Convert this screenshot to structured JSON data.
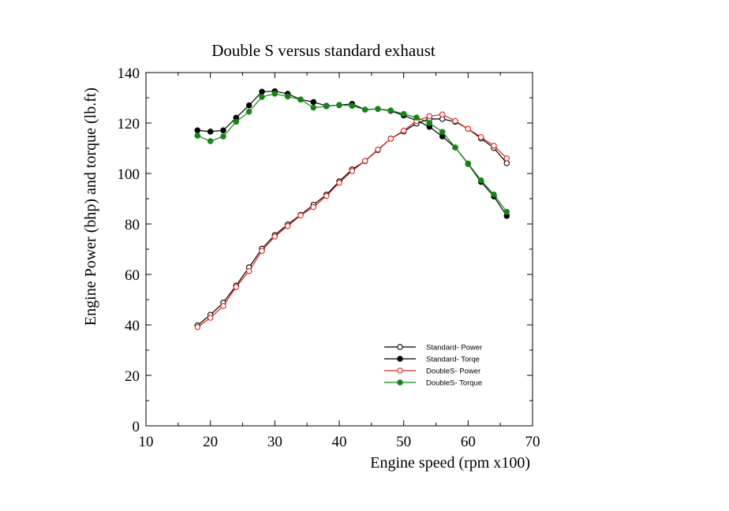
{
  "chart_data": {
    "type": "line",
    "title": "Double S versus standard exhaust",
    "xlabel": "Engine speed (rpm x100)",
    "ylabel": "Engine Power (bhp) and torque (lb.ft)",
    "xlim": [
      10,
      70
    ],
    "ylim": [
      0,
      140
    ],
    "xticks": [
      10,
      20,
      30,
      40,
      50,
      60,
      70
    ],
    "yticks": [
      0,
      20,
      40,
      60,
      80,
      100,
      120,
      140
    ],
    "grid": false,
    "legend_position": "lower-right",
    "series": [
      {
        "name": "Standard- Power",
        "color": "#000000",
        "marker": "open-circle",
        "x": [
          18,
          20,
          22,
          24,
          26,
          28,
          30,
          32,
          34,
          36,
          38,
          40,
          42,
          44,
          46,
          48,
          50,
          52,
          54,
          56,
          58,
          60,
          62,
          64,
          66
        ],
        "y": [
          39.8,
          44.0,
          48.8,
          55.6,
          62.8,
          70.2,
          75.6,
          79.8,
          83.6,
          87.6,
          91.6,
          96.9,
          101.6,
          104.9,
          109.3,
          113.8,
          116.7,
          119.8,
          121.6,
          121.6,
          120.5,
          117.7,
          113.9,
          110.1,
          104.1
        ]
      },
      {
        "name": "Standard- Torqe",
        "color": "#000000",
        "marker": "filled-circle",
        "x": [
          18,
          20,
          22,
          24,
          26,
          28,
          30,
          32,
          34,
          36,
          38,
          40,
          42,
          44,
          46,
          48,
          50,
          52,
          54,
          56,
          58,
          60,
          62,
          64,
          66
        ],
        "y": [
          117.1,
          116.6,
          117.1,
          122.1,
          127.0,
          132.4,
          132.6,
          131.6,
          129.3,
          128.3,
          126.8,
          127.1,
          127.6,
          125.3,
          125.6,
          124.8,
          123.0,
          121.0,
          118.5,
          114.7,
          110.3,
          103.8,
          96.7,
          90.9,
          83.2
        ]
      },
      {
        "name": "DoubleS- Power",
        "color": "#dd2222",
        "marker": "open-circle",
        "x": [
          18,
          20,
          22,
          24,
          26,
          28,
          30,
          32,
          34,
          36,
          38,
          40,
          42,
          44,
          46,
          48,
          50,
          52,
          54,
          56,
          58,
          60,
          62,
          64,
          66
        ],
        "y": [
          39.1,
          42.8,
          47.5,
          55.0,
          61.3,
          69.3,
          75.0,
          79.2,
          83.4,
          86.7,
          91.1,
          96.3,
          101.0,
          105.0,
          109.5,
          113.8,
          117.0,
          120.8,
          122.7,
          123.4,
          120.8,
          117.7,
          114.4,
          111.0,
          106.0
        ]
      },
      {
        "name": "DoubleS- Torque",
        "color": "#118811",
        "marker": "filled-circle",
        "x": [
          18,
          20,
          22,
          24,
          26,
          28,
          30,
          32,
          34,
          36,
          38,
          40,
          42,
          44,
          46,
          48,
          50,
          52,
          54,
          56,
          58,
          60,
          62,
          64,
          66
        ],
        "y": [
          115.0,
          112.8,
          114.7,
          120.5,
          124.5,
          130.3,
          131.6,
          130.5,
          129.3,
          126.1,
          126.6,
          127.2,
          126.8,
          125.3,
          125.6,
          125.0,
          123.6,
          122.2,
          120.0,
          116.5,
          110.3,
          104.0,
          97.3,
          91.7,
          84.8
        ]
      }
    ]
  }
}
